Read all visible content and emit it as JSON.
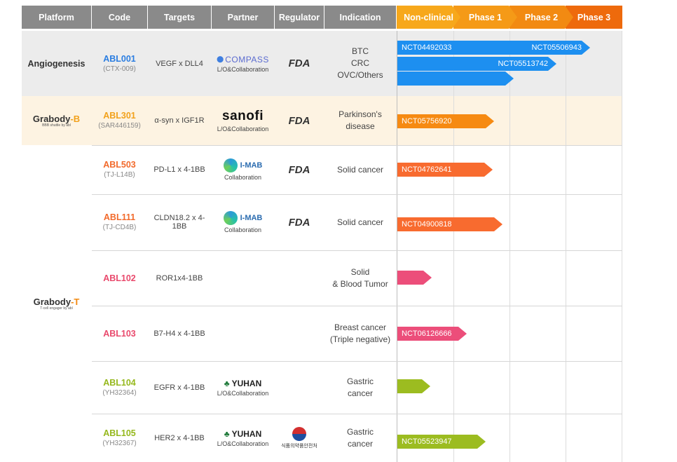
{
  "header": {
    "columns": [
      "Platform",
      "Code",
      "Targets",
      "Partner",
      "Regulator",
      "Indication"
    ],
    "phases": [
      "Non-clinical",
      "Phase 1",
      "Phase 2",
      "Phase 3"
    ],
    "colors": {
      "header_gray": "#8a8a8a",
      "non_clinical": "#f7a81b",
      "phase1": "#f59a17",
      "phase2": "#f28a12",
      "phase3": "#ee6a0c"
    }
  },
  "platforms": {
    "angiogenesis": "Angiogenesis",
    "grabody_b": {
      "name": "Grabody",
      "suffix": "-B",
      "sub": "BBB shuttle by abl"
    },
    "grabody_t": {
      "name": "Grabody",
      "suffix": "-T",
      "sub": "T-cell engager by abl"
    }
  },
  "rows": [
    {
      "code": "ABL001",
      "subcode": "(CTX-009)",
      "code_color": "#2a7de1",
      "target": "VEGF x DLL4",
      "partner": "COMPASS",
      "partner_text": "L/O&Collaboration",
      "regulator": "FDA",
      "indication": "BTC\nCRC\nOVC/Others",
      "bg": "#ececec"
    },
    {
      "code": "ABL301",
      "subcode": "(SAR446159)",
      "code_color": "#f2a11b",
      "target": "α-syn x IGF1R",
      "partner": "sanofi",
      "partner_text": "L/O&Collaboration",
      "regulator": "FDA",
      "indication": "Parkinson's\ndisease",
      "bg": "#fdf3e2"
    },
    {
      "code": "ABL503",
      "subcode": "(TJ-L14B)",
      "code_color": "#f26a2b",
      "target": "PD-L1 x 4-1BB",
      "partner": "I-MAB",
      "partner_text": "Collaboration",
      "regulator": "FDA",
      "indication": "Solid cancer"
    },
    {
      "code": "ABL111",
      "subcode": "(TJ-CD4B)",
      "code_color": "#f26a2b",
      "target": "CLDN18.2 x 4-1BB",
      "partner": "I-MAB",
      "partner_text": "Collaboration",
      "regulator": "FDA",
      "indication": "Solid cancer"
    },
    {
      "code": "ABL102",
      "subcode": "",
      "code_color": "#e9496c",
      "target": "ROR1x4-1BB",
      "partner": "",
      "partner_text": "",
      "regulator": "",
      "indication": "Solid\n& Blood Tumor"
    },
    {
      "code": "ABL103",
      "subcode": "",
      "code_color": "#e9496c",
      "target": "B7-H4 x 4-1BB",
      "partner": "",
      "partner_text": "",
      "regulator": "",
      "indication": "Breast cancer\n(Triple negative)"
    },
    {
      "code": "ABL104",
      "subcode": "(YH32364)",
      "code_color": "#95b81c",
      "target": "EGFR x 4-1BB",
      "partner": "YUHAN",
      "partner_text": "L/O&Collaboration",
      "regulator": "",
      "indication": "Gastric\ncancer"
    },
    {
      "code": "ABL105",
      "subcode": "(YH32367)",
      "code_color": "#95b81c",
      "target": "HER2 x 4-1BB",
      "partner": "YUHAN",
      "partner_text": "L/O&Collaboration",
      "regulator": "MFDS",
      "indication": "Gastric\ncancer"
    }
  ],
  "bars": [
    {
      "label": "NCT04492033",
      "label2": "NCT05506943",
      "progress": 3.4,
      "color": "#1d8ff0"
    },
    {
      "label": "",
      "label2": "NCT05513742",
      "progress": 2.8,
      "color": "#1d8ff0"
    },
    {
      "label": "",
      "label2": "",
      "progress": 2.05,
      "color": "#1d8ff0"
    },
    {
      "label": "NCT05756920",
      "label2": "",
      "progress": 1.7,
      "color": "#f68a12"
    },
    {
      "label": "NCT04762641",
      "label2": "",
      "progress": 1.68,
      "color": "#f86b2f"
    },
    {
      "label": "NCT04900818",
      "label2": "",
      "progress": 1.85,
      "color": "#f86b2f"
    },
    {
      "label": "",
      "label2": "",
      "progress": 0.6,
      "color": "#ec4e7a"
    },
    {
      "label": "NCT06126666",
      "label2": "",
      "progress": 1.22,
      "color": "#ec4e7a"
    },
    {
      "label": "",
      "label2": "",
      "progress": 0.58,
      "color": "#9cbc20"
    },
    {
      "label": "NCT05523947",
      "label2": "",
      "progress": 1.55,
      "color": "#9cbc20"
    }
  ],
  "regulator_mfds_text": "식품의약품안전처"
}
